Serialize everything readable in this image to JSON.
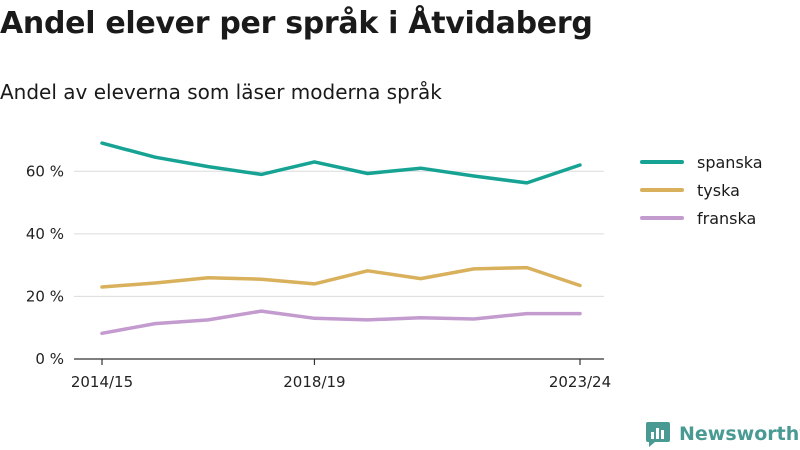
{
  "title": "Andel elever per språk i Åtvidaberg",
  "subtitle": "Andel av eleverna som läser moderna språk",
  "brand": {
    "name": "Newsworthy",
    "icon": "newsworthy-logo-icon",
    "color": "#4a9a94"
  },
  "chart_data": {
    "type": "line",
    "title": "Andel elever per språk i Åtvidaberg",
    "subtitle": "Andel av eleverna som läser moderna språk",
    "x": [
      "2014/15",
      "2015/16",
      "2016/17",
      "2017/18",
      "2018/19",
      "2019/20",
      "2020/21",
      "2021/22",
      "2022/23",
      "2023/24"
    ],
    "x_tick_labels": [
      "2014/15",
      "2018/19",
      "2023/24"
    ],
    "y_ticks": [
      0,
      20,
      40,
      60
    ],
    "y_tick_labels": [
      "0 %",
      "20 %",
      "40 %",
      "60 %"
    ],
    "ylim": [
      0,
      70
    ],
    "grid": true,
    "legend_position": "right",
    "series": [
      {
        "name": "spanska",
        "color": "#16a394",
        "values": [
          69,
          64.5,
          61.5,
          59,
          63,
          59.3,
          61,
          58.5,
          56.3,
          62
        ]
      },
      {
        "name": "tyska",
        "color": "#d9b05c",
        "values": [
          23,
          24.3,
          26,
          25.5,
          24,
          28.2,
          25.7,
          28.8,
          29.2,
          23.5
        ]
      },
      {
        "name": "franska",
        "color": "#c39bcf",
        "values": [
          8.2,
          11.3,
          12.5,
          15.3,
          13,
          12.5,
          13.2,
          12.8,
          14.5,
          14.5
        ]
      }
    ]
  }
}
